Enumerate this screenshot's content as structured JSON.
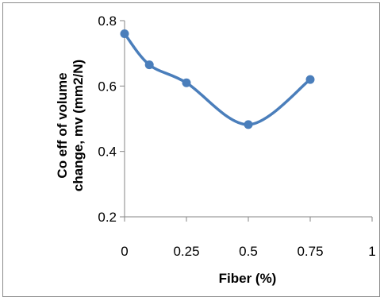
{
  "chart_data": {
    "type": "line",
    "title": "",
    "xlabel": "Fiber (%)",
    "ylabel_lines": [
      "Co eff of volume",
      "change, mv (mm2/N)"
    ],
    "x": [
      0,
      0.1,
      0.25,
      0.5,
      0.75
    ],
    "series": [
      {
        "values": [
          0.76,
          0.665,
          0.61,
          0.482,
          0.62
        ],
        "color": "#4a7ebb"
      }
    ],
    "xlim": [
      0,
      1
    ],
    "ylim": [
      0.2,
      0.8
    ],
    "x_ticks": [
      {
        "value": 0,
        "label": "0"
      },
      {
        "value": 0.25,
        "label": "0.25"
      },
      {
        "value": 0.5,
        "label": "0.5"
      },
      {
        "value": 0.75,
        "label": "0.75"
      },
      {
        "value": 1,
        "label": "1"
      }
    ],
    "y_ticks": [
      {
        "value": 0.2,
        "label": "0.2"
      },
      {
        "value": 0.4,
        "label": "0.4"
      },
      {
        "value": 0.6,
        "label": "0.6"
      },
      {
        "value": 0.8,
        "label": "0.8"
      }
    ],
    "grid": false,
    "legend": "none",
    "smooth": true,
    "markers": "circle"
  }
}
